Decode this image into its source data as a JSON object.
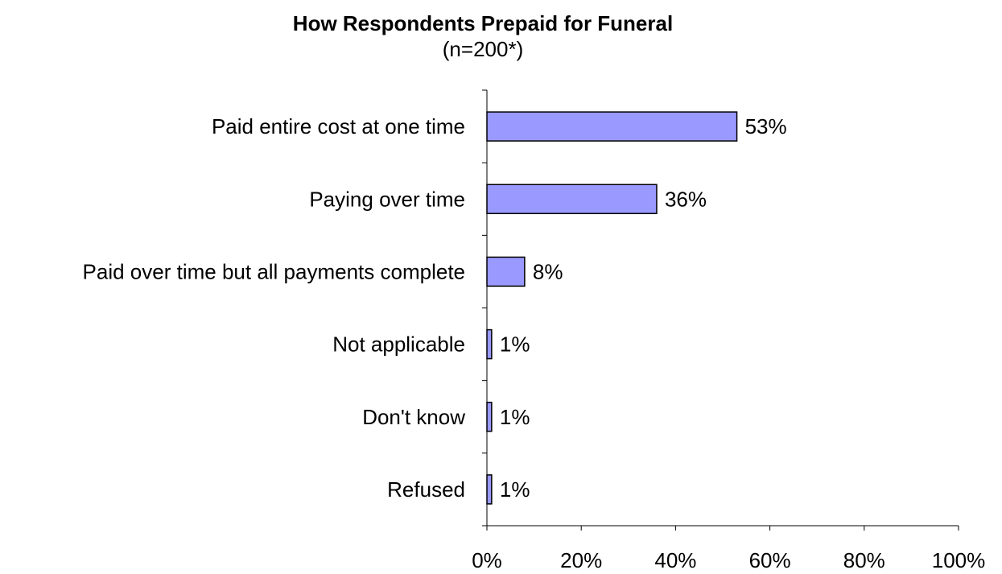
{
  "chart_data": {
    "type": "bar",
    "orientation": "horizontal",
    "title": "How Respondents Prepaid for Funeral",
    "subtitle": "(n=200*)",
    "categories": [
      "Paid entire cost at one time",
      "Paying over time",
      "Paid over time but all payments complete",
      "Not applicable",
      "Don't know",
      "Refused"
    ],
    "values": [
      53,
      36,
      8,
      1,
      1,
      1
    ],
    "data_labels": [
      "53%",
      "36%",
      "8%",
      "1%",
      "1%",
      "1%"
    ],
    "xlim": [
      0,
      100
    ],
    "x_ticks": [
      0,
      20,
      40,
      60,
      80,
      100
    ],
    "x_tick_labels": [
      "0%",
      "20%",
      "40%",
      "60%",
      "80%",
      "100%"
    ],
    "grid": false,
    "bar_color": "#9999FF",
    "bar_edge_color": "#000000"
  }
}
